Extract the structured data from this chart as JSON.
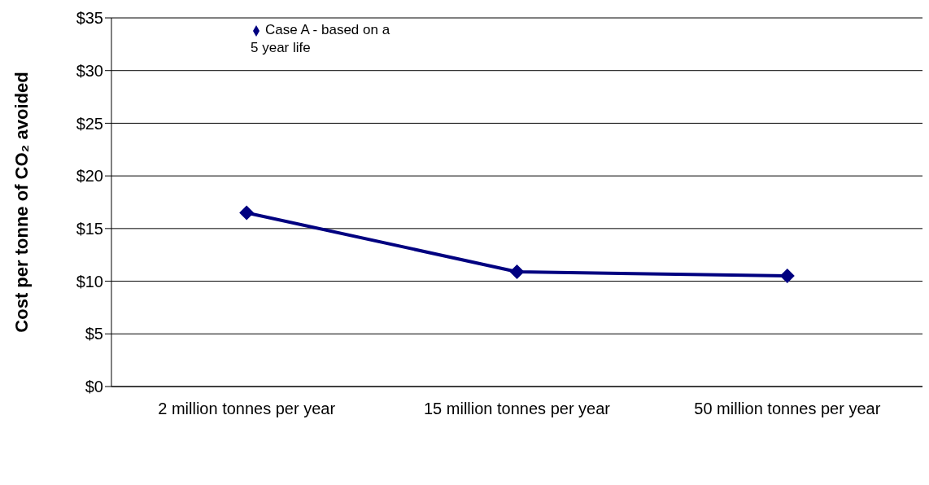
{
  "chart_data": {
    "type": "line",
    "ylabel": "Cost per tonne of CO₂ avoided",
    "categories": [
      "2 million tonnes per year",
      "15 million tonnes per year",
      "50 million tonnes per year"
    ],
    "series": [
      {
        "name": "Case A - based on a 5 year life",
        "color": "#000080",
        "values": [
          16.5,
          10.9,
          10.5
        ]
      }
    ],
    "ylim": [
      0,
      35
    ],
    "yticks": [
      {
        "value": 0,
        "label": "$0"
      },
      {
        "value": 5,
        "label": "$5"
      },
      {
        "value": 10,
        "label": "$10"
      },
      {
        "value": 15,
        "label": "$15"
      },
      {
        "value": 20,
        "label": "$20"
      },
      {
        "value": 25,
        "label": "$25"
      },
      {
        "value": 30,
        "label": "$30"
      },
      {
        "value": 35,
        "label": "$35"
      }
    ],
    "grid": "y",
    "legend": "top left",
    "marker": "diamond",
    "line_style": "solid"
  }
}
